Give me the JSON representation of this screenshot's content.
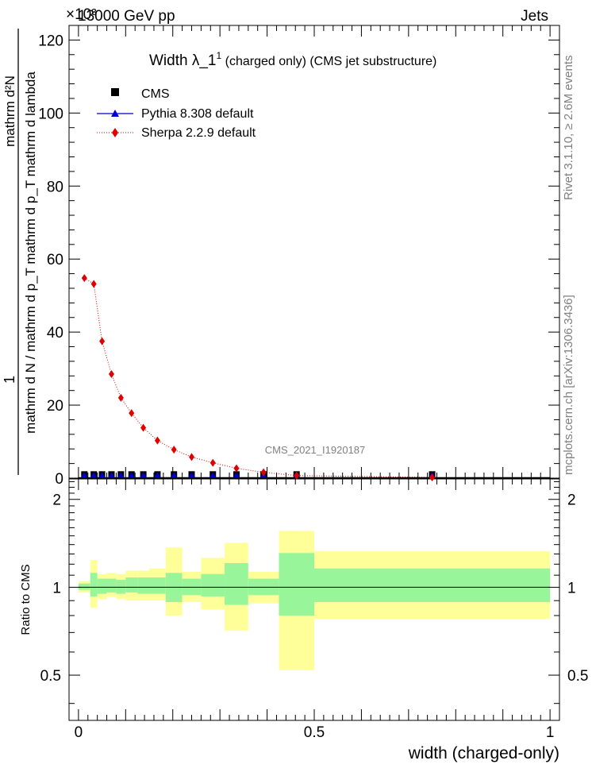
{
  "header": {
    "left": "13000 GeV pp",
    "right": "Jets",
    "exponent": "×10³"
  },
  "side_text": {
    "top": "Rivet 3.1.10, ≥ 2.6M events",
    "bottom": "mcplots.cern.ch [arXiv:1306.3436]"
  },
  "colors": {
    "cms": "#000000",
    "pythia": "#0000cc",
    "sherpa": "#e00000",
    "band_inner": "#99f599",
    "band_outer": "#ffff99"
  },
  "chart_data": {
    "type": "scatter",
    "title": "Width λ_1¹ (charged only) (CMS jet substructure)",
    "title_main": "Width λ_1",
    "title_sup": "1",
    "title_rest": " (charged only) (CMS jet substructure)",
    "watermark": "CMS_2021_I1920187",
    "ylabel_num": "1",
    "ylabel_den": "mathrm d N / mathrm d p_T mathrm d p_T mathrm d lambda",
    "ylabel_left": "mathrm d²N",
    "ylim": [
      0,
      124
    ],
    "xlim": [
      -0.02,
      1.02
    ],
    "y_ticks": [
      0,
      20,
      40,
      60,
      80,
      100,
      120
    ],
    "x_ticks": [
      0,
      0.5,
      1
    ],
    "x_tick_labels": [
      "0",
      "0.5",
      "1"
    ],
    "xlabel": "width (charged-only)",
    "legend": [
      {
        "key": "cms",
        "label": "CMS"
      },
      {
        "key": "pythia",
        "label": "Pythia 8.308 default"
      },
      {
        "key": "sherpa",
        "label": "Sherpa 2.2.9 default"
      }
    ],
    "bins": [
      [
        0.0,
        0.025
      ],
      [
        0.025,
        0.04
      ],
      [
        0.04,
        0.06
      ],
      [
        0.06,
        0.08
      ],
      [
        0.08,
        0.1
      ],
      [
        0.1,
        0.125
      ],
      [
        0.125,
        0.15
      ],
      [
        0.15,
        0.185
      ],
      [
        0.185,
        0.22
      ],
      [
        0.22,
        0.26
      ],
      [
        0.26,
        0.31
      ],
      [
        0.31,
        0.36
      ],
      [
        0.36,
        0.425
      ],
      [
        0.425,
        0.5
      ],
      [
        0.5,
        1.0
      ]
    ],
    "cms": [
      0.15,
      0.15,
      0.15,
      0.15,
      0.15,
      0.15,
      0.15,
      0.15,
      0.15,
      0.15,
      0.15,
      0.15,
      0.15,
      0.15,
      0.15
    ],
    "pythia_x": [
      0.0125,
      0.0325,
      0.05,
      0.07,
      0.09,
      0.1125,
      0.1375,
      0.1675,
      0.2025,
      0.24,
      0.285,
      0.335,
      0.3925,
      0.4625,
      0.75
    ],
    "pythia": [
      0.15,
      0.15,
      0.15,
      0.15,
      0.15,
      0.15,
      0.15,
      0.15,
      0.15,
      0.15,
      0.15,
      0.15,
      0.15,
      0.15,
      0.15
    ],
    "sherpa_x": [
      0.0125,
      0.0325,
      0.05,
      0.07,
      0.09,
      0.1125,
      0.1375,
      0.1675,
      0.2025,
      0.24,
      0.285,
      0.335,
      0.3925,
      0.4625,
      0.75
    ],
    "sherpa": [
      54.8,
      53.2,
      37.5,
      28.5,
      22.0,
      17.8,
      13.8,
      10.3,
      7.8,
      5.8,
      4.2,
      2.7,
      1.6,
      0.7,
      0.2
    ],
    "ratio": {
      "ylabel": "Ratio to CMS",
      "ylim": [
        0.35,
        2.35
      ],
      "y_ticks": [
        0.5,
        1,
        2
      ],
      "y_tick_labels": [
        "0.5",
        "1",
        "2"
      ],
      "inner": [
        [
          0.98,
          1.03
        ],
        [
          0.93,
          1.12
        ],
        [
          0.95,
          1.07
        ],
        [
          0.96,
          1.07
        ],
        [
          0.95,
          1.06
        ],
        [
          0.96,
          1.08
        ],
        [
          0.95,
          1.08
        ],
        [
          0.95,
          1.08
        ],
        [
          0.89,
          1.12
        ],
        [
          0.94,
          1.07
        ],
        [
          0.93,
          1.11
        ],
        [
          0.87,
          1.21
        ],
        [
          0.94,
          1.07
        ],
        [
          0.8,
          1.31
        ],
        [
          0.89,
          1.16
        ]
      ],
      "outer": [
        [
          0.96,
          1.05
        ],
        [
          0.85,
          1.24
        ],
        [
          0.91,
          1.11
        ],
        [
          0.93,
          1.12
        ],
        [
          0.91,
          1.11
        ],
        [
          0.9,
          1.14
        ],
        [
          0.9,
          1.14
        ],
        [
          0.9,
          1.16
        ],
        [
          0.8,
          1.37
        ],
        [
          0.89,
          1.13
        ],
        [
          0.84,
          1.26
        ],
        [
          0.71,
          1.42
        ],
        [
          0.88,
          1.13
        ],
        [
          0.52,
          1.56
        ],
        [
          0.78,
          1.33
        ]
      ]
    }
  }
}
